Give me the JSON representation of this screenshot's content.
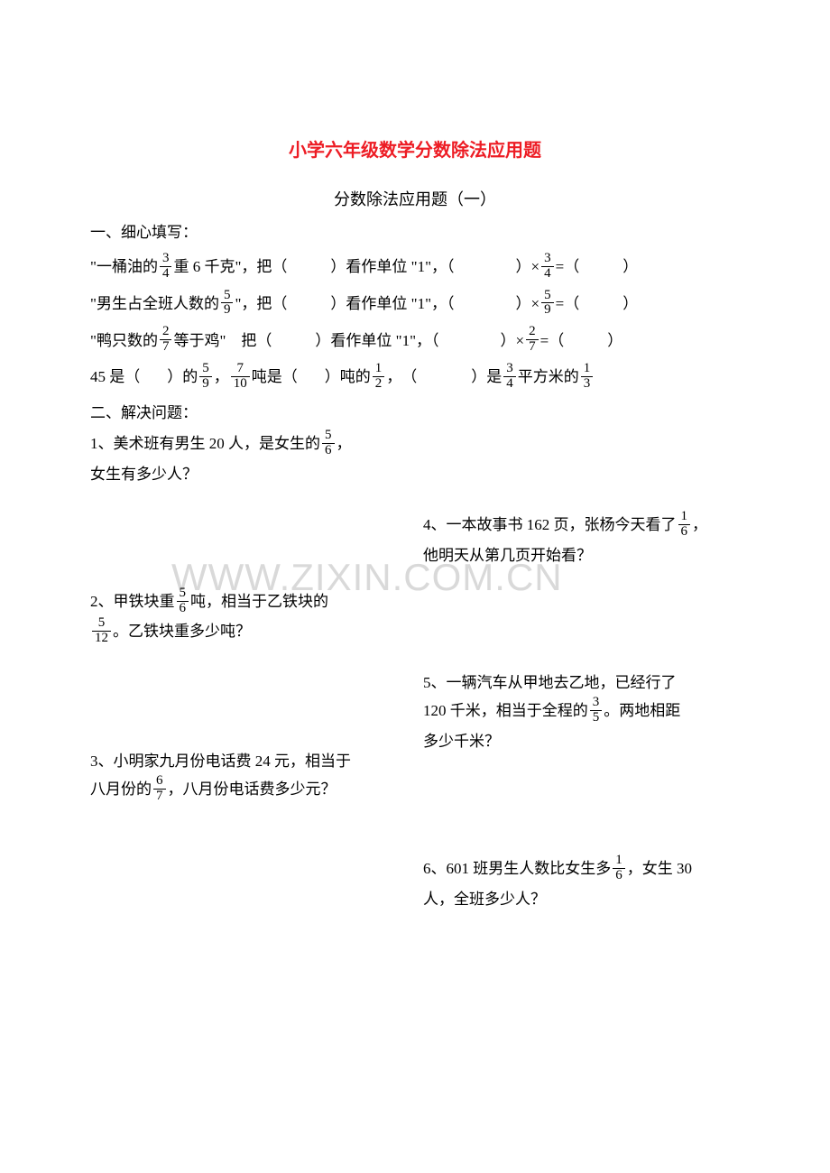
{
  "title": "小学六年级数学分数除法应用题",
  "subtitle": "分数除法应用题（一）",
  "watermark": "WWW.ZIXIN.COM.CN",
  "section1": {
    "heading": "一、细心填写：",
    "q1": {
      "pre": "\"一桶油的",
      "frac": {
        "n": "3",
        "d": "4"
      },
      "mid1": "重 6 千克\"，把（",
      "mid2": "）看作单位 \"1\"，（",
      "mid3": "）×",
      "frac2": {
        "n": "3",
        "d": "4"
      },
      "end": "=（",
      "end2": "）"
    },
    "q2": {
      "pre": "\"男生占全班人数的",
      "frac": {
        "n": "5",
        "d": "9"
      },
      "mid1": "\"，把（",
      "mid2": "）看作单位 \"1\"，（",
      "mid3": "）×",
      "frac2": {
        "n": "5",
        "d": "9"
      },
      "end": "=（",
      "end2": "）"
    },
    "q3": {
      "pre": "\"鸭只数的",
      "frac": {
        "n": "2",
        "d": "7"
      },
      "mid1": "等于鸡\"　把（",
      "mid2": "）看作单位 \"1\"，（",
      "mid3": "）×",
      "frac2": {
        "n": "2",
        "d": "7"
      },
      "end": "=（",
      "end2": "）"
    },
    "q4": {
      "p1a": "45 是（",
      "p1b": "）的",
      "f1": {
        "n": "5",
        "d": "9"
      },
      "c1": "，",
      "f2": {
        "n": "7",
        "d": "10"
      },
      "p2a": "吨是（",
      "p2b": "）吨的",
      "f3": {
        "n": "1",
        "d": "2"
      },
      "c2": "，　（",
      "p3b": "）是",
      "f4": {
        "n": "3",
        "d": "4"
      },
      "p3c": "平方米的",
      "f5": {
        "n": "1",
        "d": "3"
      }
    }
  },
  "section2": {
    "heading": "二、解决问题：",
    "left": [
      {
        "parts": [
          {
            "t": "1、美术班有男生 20 人，是女生的"
          },
          {
            "frac": {
              "n": "5",
              "d": "6"
            }
          },
          {
            "t": "，"
          }
        ],
        "line2": "女生有多少人？"
      },
      {
        "parts": [
          {
            "t": "2、甲铁块重"
          },
          {
            "frac": {
              "n": "5",
              "d": "6"
            }
          },
          {
            "t": "吨，相当于乙铁块的"
          }
        ],
        "line2parts": [
          {
            "frac": {
              "n": "5",
              "d": "12"
            }
          },
          {
            "t": "。乙铁块重多少吨？"
          }
        ]
      },
      {
        "parts": [
          {
            "t": "3、小明家九月份电话费 24 元，相当于"
          }
        ],
        "line2parts": [
          {
            "t": "八月份的"
          },
          {
            "frac": {
              "n": "6",
              "d": "7"
            }
          },
          {
            "t": "，八月份电话费多少元？"
          }
        ]
      }
    ],
    "right": [
      {
        "parts": [
          {
            "t": "4、一本故事书 162 页，张杨今天看了"
          },
          {
            "frac": {
              "n": "1",
              "d": "6"
            }
          },
          {
            "t": "，"
          }
        ],
        "line2": "他明天从第几页开始看？"
      },
      {
        "parts": [
          {
            "t": "5、一辆汽车从甲地去乙地，已经行了"
          }
        ],
        "line2parts": [
          {
            "t": "120 千米，相当于全程的"
          },
          {
            "frac": {
              "n": "3",
              "d": "5"
            }
          },
          {
            "t": "。两地相距"
          }
        ],
        "line3": "多少千米？"
      },
      {
        "parts": [
          {
            "t": "6、601 班男生人数比女生多"
          },
          {
            "frac": {
              "n": "1",
              "d": "6"
            }
          },
          {
            "t": "，女生 30"
          }
        ],
        "line2": "人，全班多少人？"
      }
    ]
  }
}
